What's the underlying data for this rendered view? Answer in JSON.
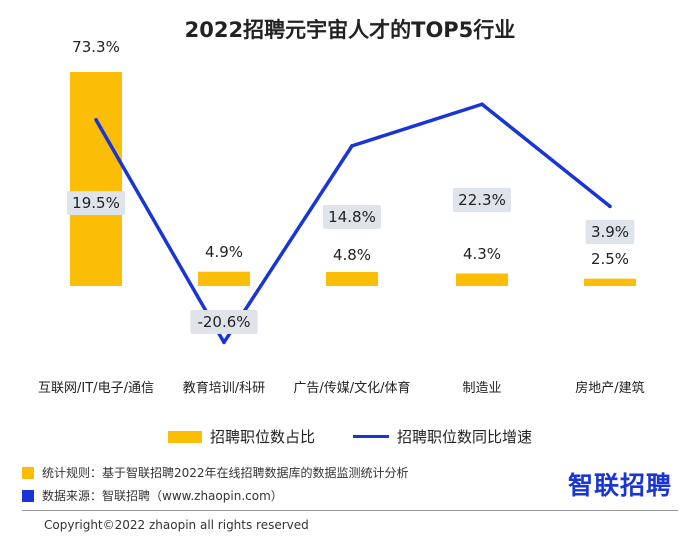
{
  "chart_data": {
    "type": "bar",
    "title": "2022招聘元宇宙人才的TOP5行业",
    "categories": [
      "互联网/IT/电子/通信",
      "教育培训/科研",
      "广告/传媒/文化/体育",
      "制造业",
      "房地产/建筑"
    ],
    "series": [
      {
        "name": "招聘职位数占比",
        "type": "bar",
        "values": [
          73.3,
          4.9,
          4.8,
          4.3,
          2.5
        ],
        "labels": [
          "73.3%",
          "4.9%",
          "4.8%",
          "4.3%",
          "2.5%"
        ],
        "color": "#fbbd05"
      },
      {
        "name": "招聘职位数同比增速",
        "type": "line",
        "values": [
          19.5,
          -20.6,
          14.8,
          22.3,
          3.9
        ],
        "labels": [
          "19.5%",
          "-20.6%",
          "14.8%",
          "22.3%",
          "3.9%"
        ],
        "color": "#1a35d6"
      }
    ]
  },
  "footer": {
    "rule": "统计规则：基于智联招聘2022年在线招聘数据库的数据监测统计分析",
    "source": "数据来源：智联招聘（www.zhaopin.com）",
    "brand": "智联招聘",
    "copyright": "Copyright©2022 zhaopin all rights reserved",
    "rule_color": "#fbbd05",
    "source_color": "#1a35d6"
  }
}
